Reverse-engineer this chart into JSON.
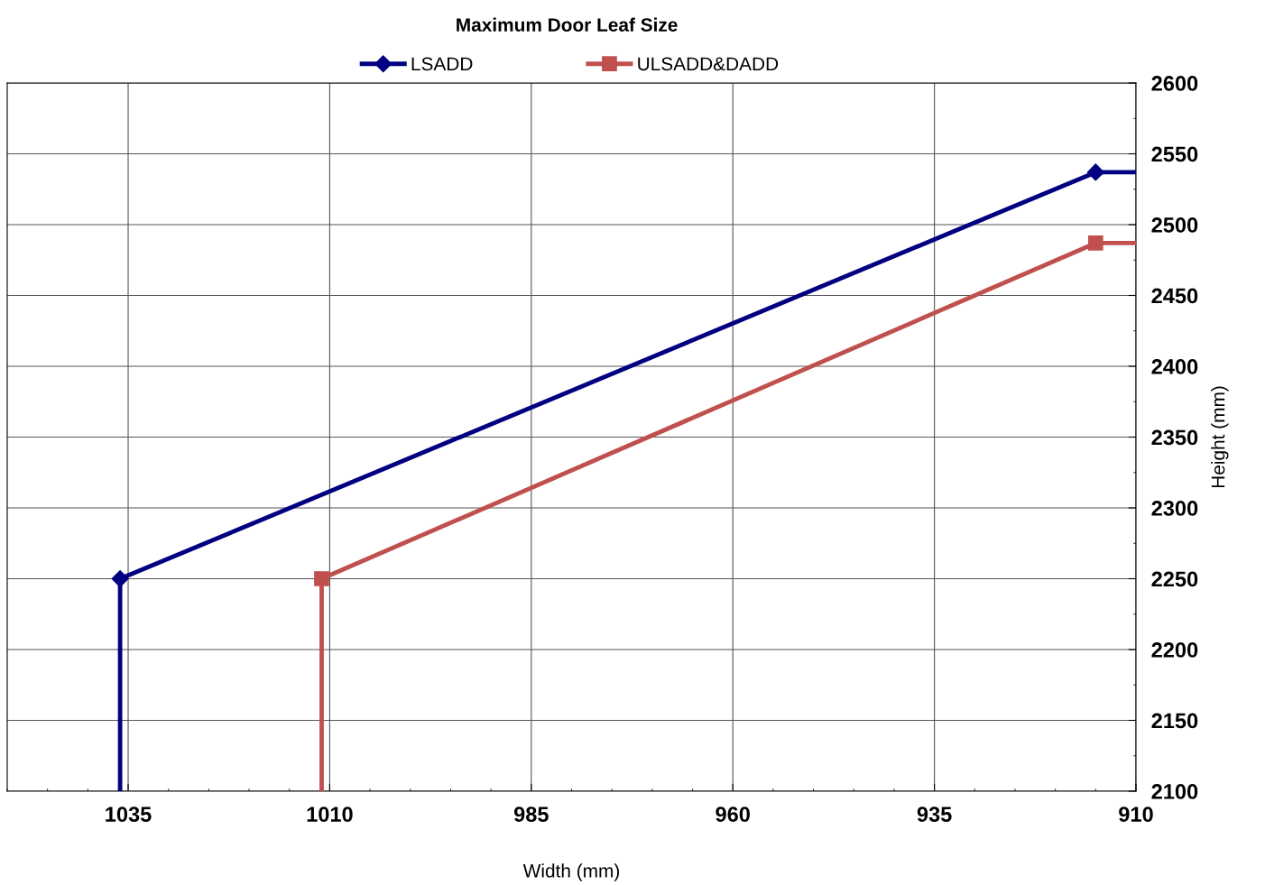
{
  "chart_data": {
    "type": "line",
    "title": "Maximum Door Leaf Size",
    "xlabel": "Width (mm)",
    "ylabel": "Height (mm)",
    "xlim": [
      1050,
      910
    ],
    "xticks": [
      1035,
      1010,
      985,
      960,
      935,
      910
    ],
    "ylim": [
      2100,
      2600
    ],
    "yticks": [
      2100,
      2150,
      2200,
      2250,
      2300,
      2350,
      2400,
      2450,
      2500,
      2550,
      2600
    ],
    "grid": true,
    "legend": "top",
    "series": [
      {
        "name": "LSADD",
        "color": "#000080",
        "marker": "diamond",
        "x": [
          1036,
          915
        ],
        "values": [
          2250,
          2537
        ]
      },
      {
        "name": "ULSADD&DADD",
        "color": "#c0504d",
        "marker": "square",
        "x": [
          1011,
          915
        ],
        "values": [
          2250,
          2487
        ]
      },
      {
        "color": "#000080",
        "marker": "none",
        "x": [
          1036,
          1036
        ],
        "values": [
          2100,
          2250
        ]
      },
      {
        "color": "#000080",
        "marker": "none",
        "x": [
          915,
          910
        ],
        "values": [
          2537,
          2537
        ]
      },
      {
        "color": "#c0504d",
        "marker": "none",
        "x": [
          1011,
          1011
        ],
        "values": [
          2100,
          2250
        ]
      },
      {
        "color": "#c0504d",
        "marker": "none",
        "x": [
          915,
          910
        ],
        "values": [
          2487,
          2487
        ]
      }
    ]
  }
}
